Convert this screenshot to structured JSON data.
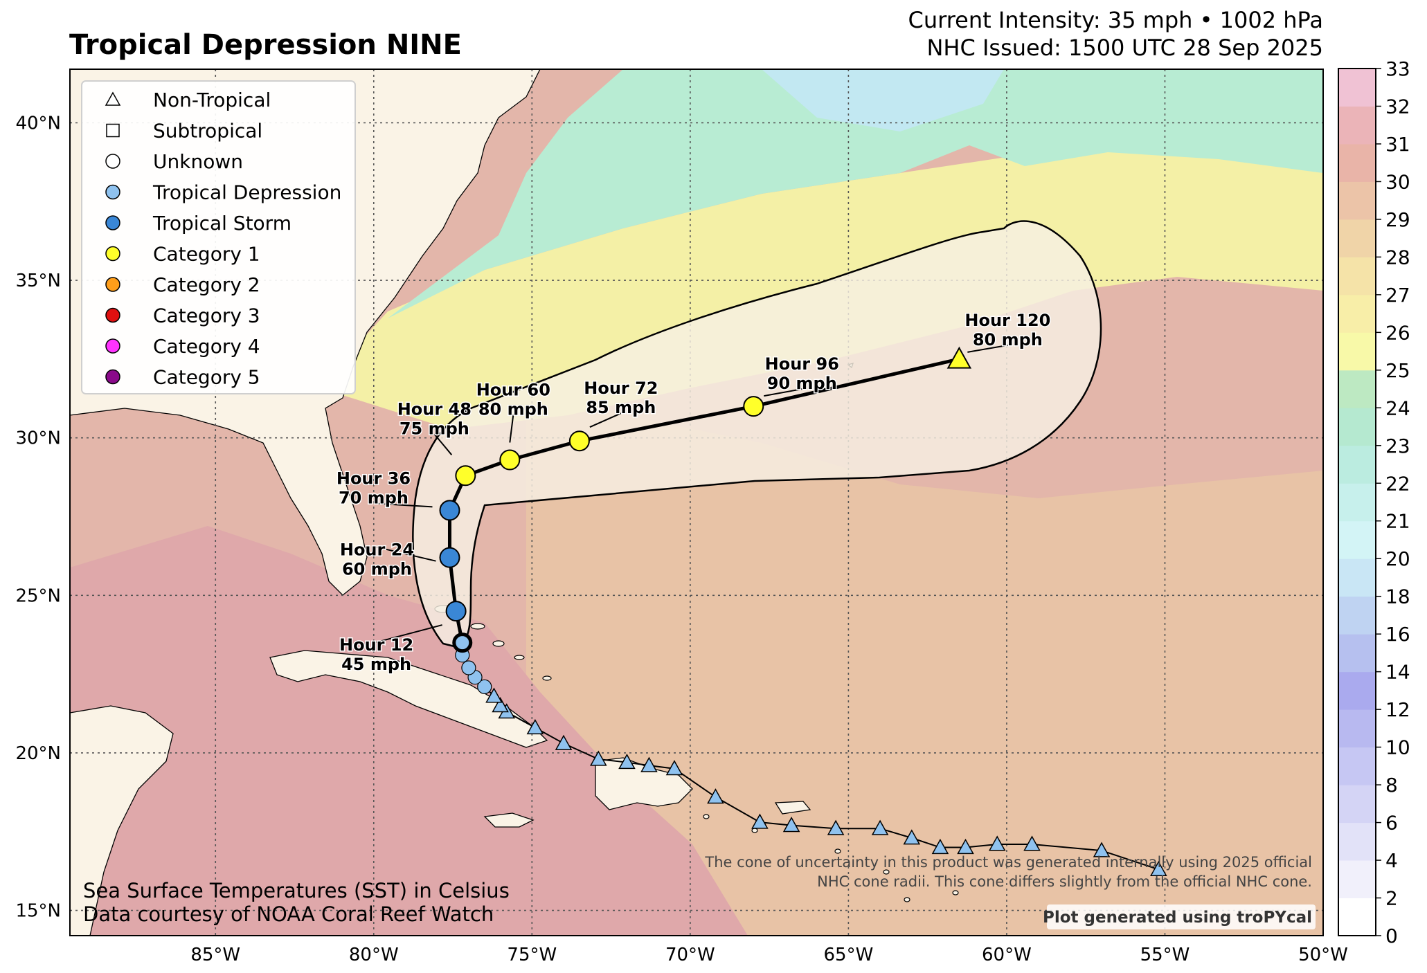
{
  "title": "Tropical Depression NINE",
  "header": {
    "intensity": "Current Intensity: 35 mph • 1002 hPa",
    "issued": "NHC Issued: 1500 UTC 28 Sep 2025"
  },
  "legend": [
    {
      "label": "Non-Tropical",
      "symbol": "triangle",
      "color": "#ffffff"
    },
    {
      "label": "Subtropical",
      "symbol": "square",
      "color": "#ffffff"
    },
    {
      "label": "Unknown",
      "symbol": "circle",
      "color": "#ffffff"
    },
    {
      "label": "Tropical Depression",
      "symbol": "circle",
      "color": "#8fc2ef"
    },
    {
      "label": "Tropical Storm",
      "symbol": "circle",
      "color": "#3a87d6"
    },
    {
      "label": "Category 1",
      "symbol": "circle",
      "color": "#ffff2a"
    },
    {
      "label": "Category 2",
      "symbol": "circle",
      "color": "#ff9e1a"
    },
    {
      "label": "Category 3",
      "symbol": "circle",
      "color": "#e01010"
    },
    {
      "label": "Category 4",
      "symbol": "circle",
      "color": "#ff33ff"
    },
    {
      "label": "Category 5",
      "symbol": "circle",
      "color": "#8a0a8a"
    }
  ],
  "axes": {
    "lon_ticks": [
      {
        "value": -85,
        "label": "85°W"
      },
      {
        "value": -80,
        "label": "80°W"
      },
      {
        "value": -75,
        "label": "75°W"
      },
      {
        "value": -70,
        "label": "70°W"
      },
      {
        "value": -65,
        "label": "65°W"
      },
      {
        "value": -60,
        "label": "60°W"
      },
      {
        "value": -55,
        "label": "55°W"
      },
      {
        "value": -50,
        "label": "50°W"
      }
    ],
    "lat_ticks": [
      {
        "value": 15,
        "label": "15°N"
      },
      {
        "value": 20,
        "label": "20°N"
      },
      {
        "value": 25,
        "label": "25°N"
      },
      {
        "value": 30,
        "label": "30°N"
      },
      {
        "value": 35,
        "label": "35°N"
      },
      {
        "value": 40,
        "label": "40°N"
      }
    ],
    "lon_range": [
      -89.6,
      -50
    ],
    "lat_range": [
      14.2,
      41.7
    ]
  },
  "colorbar": {
    "ticks": [
      "0",
      "2",
      "4",
      "6",
      "8",
      "10",
      "12",
      "14",
      "16",
      "18",
      "20",
      "21",
      "22",
      "23",
      "24",
      "25",
      "26",
      "27",
      "28",
      "29",
      "30",
      "31",
      "32",
      "33"
    ],
    "colors": [
      "#ffffff",
      "#f1f0fb",
      "#e2e2f8",
      "#d4d4f5",
      "#c6c7f3",
      "#b8b9f0",
      "#aaaaee",
      "#b6c0ef",
      "#bfd3f2",
      "#c9e6f5",
      "#d3f4f6",
      "#c7f0ec",
      "#bbece0",
      "#b5e9d0",
      "#bde9c2",
      "#f8f9a8",
      "#f8eea8",
      "#f5e3a8",
      "#f0d4a8",
      "#ecc4a8",
      "#e9b4a8",
      "#ebb4b8",
      "#f0c2d4",
      "#f7d8ee"
    ]
  },
  "past_track": [
    [
      -55.2,
      16.3
    ],
    [
      -57,
      16.9
    ],
    [
      -59.2,
      17.1
    ],
    [
      -60.3,
      17.1
    ],
    [
      -61.3,
      17
    ],
    [
      -62.1,
      17
    ],
    [
      -63,
      17.3
    ],
    [
      -64,
      17.6
    ],
    [
      -65.4,
      17.6
    ],
    [
      -66.8,
      17.7
    ],
    [
      -67.8,
      17.8
    ],
    [
      -69.2,
      18.6
    ],
    [
      -70.5,
      19.5
    ],
    [
      -71.3,
      19.6
    ],
    [
      -72,
      19.7
    ],
    [
      -72.9,
      19.8
    ],
    [
      -74,
      20.3
    ],
    [
      -74.9,
      20.8
    ],
    [
      -75.8,
      21.3
    ],
    [
      -76,
      21.5
    ],
    [
      -76.2,
      21.8
    ]
  ],
  "td_points": [
    [
      -76.5,
      22.1
    ],
    [
      -76.8,
      22.4
    ],
    [
      -77,
      22.7
    ],
    [
      -77.2,
      23.1
    ]
  ],
  "current_position": [
    -77.2,
    23.5
  ],
  "forecast": [
    {
      "lon": -77.2,
      "lat": 23.5,
      "cat": "Tropical Depression"
    },
    {
      "lon": -77.4,
      "lat": 24.5,
      "cat": "Tropical Storm",
      "hour": "Hour 12",
      "wind": "45 mph"
    },
    {
      "lon": -77.6,
      "lat": 26.2,
      "cat": "Tropical Storm",
      "hour": "Hour 24",
      "wind": "60 mph"
    },
    {
      "lon": -77.6,
      "lat": 27.7,
      "cat": "Tropical Storm",
      "hour": "Hour 36",
      "wind": "70 mph"
    },
    {
      "lon": -77.1,
      "lat": 28.8,
      "cat": "Category 1",
      "hour": "Hour 48",
      "wind": "75 mph"
    },
    {
      "lon": -75.7,
      "lat": 29.3,
      "cat": "Category 1",
      "hour": "Hour 60",
      "wind": "80 mph"
    },
    {
      "lon": -73.5,
      "lat": 29.9,
      "cat": "Category 1",
      "hour": "Hour 72",
      "wind": "85 mph"
    },
    {
      "lon": -68,
      "lat": 31,
      "cat": "Category 1",
      "hour": "Hour 96",
      "wind": "90 mph"
    },
    {
      "lon": -61.5,
      "lat": 32.5,
      "cat": "Non-Tropical",
      "hour": "Hour 120",
      "wind": "80 mph"
    }
  ],
  "notes": {
    "sst_line1": "Sea Surface Temperatures (SST) in Celsius",
    "sst_line2": "Data courtesy of NOAA Coral Reef Watch",
    "cone_line1": "The cone of uncertainty in this product was generated internally using 2025 official",
    "cone_line2": "NHC cone radii. This cone differs slightly from the official NHC cone.",
    "credit": "Plot generated using troPYcal"
  },
  "colors": {
    "land": "#faf3e6",
    "sst_warm": "#e3b6aa",
    "sst_hot": "#dfa8aa",
    "sst_mid": "#e9c6a6",
    "sst_yellow": "#f4f0a6",
    "sst_cool": "#b8ecd3",
    "sst_cold": "#c2e8f2",
    "cone_fill": "#f6efe3"
  }
}
